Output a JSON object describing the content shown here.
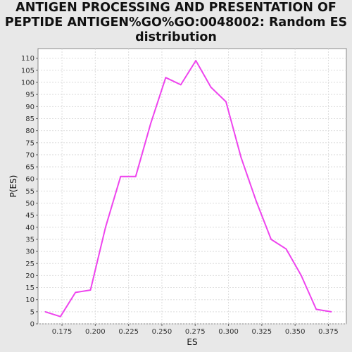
{
  "chart_data": {
    "type": "line",
    "title_lines": [
      "ANTIGEN PROCESSING AND PRESENTATION OF",
      "PEPTIDE ANTIGEN%GO%GO:0048002: Random ES",
      "distribution"
    ],
    "xlabel": "ES",
    "ylabel": "P(ES)",
    "xlim": [
      0.157,
      0.3885
    ],
    "ylim": [
      0,
      114
    ],
    "x_ticks": [
      "0.175",
      "0.200",
      "0.225",
      "0.250",
      "0.275",
      "0.300",
      "0.325",
      "0.350",
      "0.375"
    ],
    "y_ticks": [
      "0",
      "5",
      "10",
      "15",
      "20",
      "25",
      "30",
      "35",
      "40",
      "45",
      "50",
      "55",
      "60",
      "65",
      "70",
      "75",
      "80",
      "85",
      "90",
      "95",
      "100",
      "105",
      "110"
    ],
    "grid": true,
    "series": [
      {
        "color": "#ee44ee",
        "x": [
          0.1625,
          0.1738,
          0.1851,
          0.1964,
          0.2077,
          0.219,
          0.2303,
          0.2416,
          0.2529,
          0.2642,
          0.2755,
          0.2868,
          0.2981,
          0.3094,
          0.3207,
          0.332,
          0.3433,
          0.3546,
          0.3659,
          0.3772
        ],
        "y": [
          5,
          3,
          13,
          14,
          40,
          61,
          61,
          83,
          102,
          99,
          109,
          98,
          92,
          69,
          51,
          35,
          31,
          20,
          6,
          5
        ]
      }
    ]
  }
}
